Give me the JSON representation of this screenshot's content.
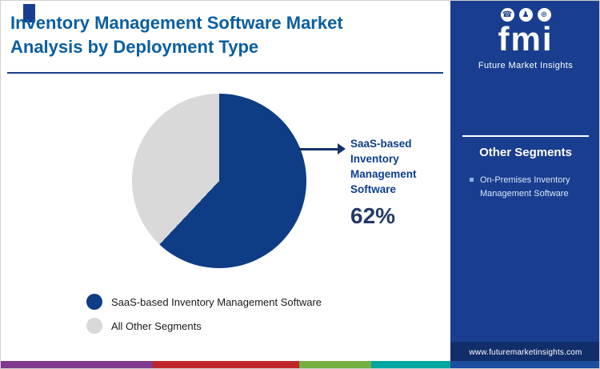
{
  "header": {
    "title_line1": "Inventory Management Software Market",
    "title_line2": "Analysis by Deployment Type"
  },
  "chart_data": {
    "type": "pie",
    "title": "Inventory Management Software Market Analysis by Deployment Type",
    "labels": [
      "SaaS-based Inventory Management Software",
      "All Other Segments"
    ],
    "values": [
      62,
      38
    ],
    "colors": [
      "#0e3d85",
      "#d9d9d9"
    ],
    "start_angle_deg": 0,
    "direction": "clockwise",
    "legend_position": "bottom-left",
    "callout": {
      "label": "SaaS-based Inventory Management Software",
      "value": "62%"
    }
  },
  "legend": {
    "items": [
      {
        "label": "SaaS-based Inventory Management Software",
        "color": "#0e3d85"
      },
      {
        "label": "All Other Segments",
        "color": "#d9d9d9"
      }
    ]
  },
  "sidebar": {
    "logo": {
      "text": "fmi",
      "brand": "Future Market Insights",
      "glyphs": [
        "☎",
        "♟",
        "⊕"
      ]
    },
    "heading": "Other Segments",
    "items": [
      "On-Premises Inventory Management Software"
    ],
    "website": "www.futuremarketinsights.com"
  },
  "colors": {
    "brand_blue": "#1a3e8f",
    "title_blue": "#0b5fa0",
    "pie_blue": "#0e3d85",
    "pie_gray": "#d9d9d9",
    "url_band": "#112e6b",
    "strip": [
      "#803a8e",
      "#c0272d",
      "#76b043",
      "#00a6a0",
      "#1c4ea0"
    ]
  }
}
